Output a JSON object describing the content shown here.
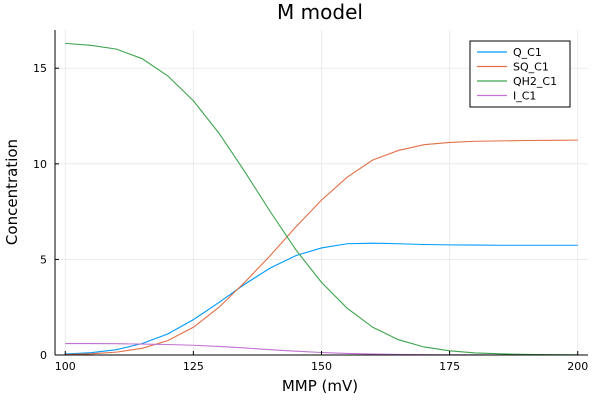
{
  "chart_data": {
    "type": "line",
    "title": "M model",
    "xlabel": "MMP (mV)",
    "ylabel": "Concentration",
    "xlim": [
      98,
      202
    ],
    "ylim": [
      0,
      17
    ],
    "xticks": [
      100,
      125,
      150,
      175,
      200
    ],
    "yticks": [
      0,
      5,
      10,
      15
    ],
    "grid": true,
    "legend_position": "top-right",
    "series": [
      {
        "name": "Q_C1",
        "color": "#009af9",
        "x": [
          100,
          105,
          110,
          115,
          120,
          125,
          130,
          135,
          140,
          145,
          150,
          155,
          160,
          165,
          170,
          175,
          180,
          185,
          190,
          195,
          200
        ],
        "values": [
          0.05,
          0.12,
          0.28,
          0.6,
          1.1,
          1.85,
          2.75,
          3.7,
          4.55,
          5.2,
          5.6,
          5.82,
          5.85,
          5.82,
          5.78,
          5.76,
          5.75,
          5.74,
          5.74,
          5.74,
          5.74
        ]
      },
      {
        "name": "SQ_C1",
        "color": "#e26f46",
        "x": [
          100,
          105,
          110,
          115,
          120,
          125,
          130,
          135,
          140,
          145,
          150,
          155,
          160,
          165,
          170,
          175,
          180,
          185,
          190,
          195,
          200
        ],
        "values": [
          0.02,
          0.06,
          0.15,
          0.35,
          0.75,
          1.45,
          2.5,
          3.8,
          5.2,
          6.7,
          8.1,
          9.3,
          10.2,
          10.7,
          11.0,
          11.12,
          11.18,
          11.2,
          11.22,
          11.23,
          11.24
        ]
      },
      {
        "name": "QH2_C1",
        "color": "#3da44d",
        "x": [
          100,
          105,
          110,
          115,
          120,
          125,
          130,
          135,
          140,
          145,
          150,
          155,
          160,
          165,
          170,
          175,
          180,
          185,
          190,
          195,
          200
        ],
        "values": [
          16.3,
          16.2,
          16.0,
          15.5,
          14.6,
          13.3,
          11.6,
          9.6,
          7.5,
          5.5,
          3.8,
          2.45,
          1.45,
          0.8,
          0.42,
          0.22,
          0.11,
          0.06,
          0.03,
          0.02,
          0.01
        ]
      },
      {
        "name": "I_C1",
        "color": "#c271d2",
        "x": [
          100,
          105,
          110,
          115,
          120,
          125,
          130,
          135,
          140,
          145,
          150,
          155,
          160,
          165,
          170,
          175,
          180,
          185,
          190,
          195,
          200
        ],
        "values": [
          0.6,
          0.6,
          0.59,
          0.57,
          0.55,
          0.51,
          0.45,
          0.37,
          0.28,
          0.2,
          0.13,
          0.08,
          0.05,
          0.03,
          0.02,
          0.01,
          0.01,
          0.0,
          0.0,
          0.0,
          0.0
        ]
      }
    ]
  }
}
